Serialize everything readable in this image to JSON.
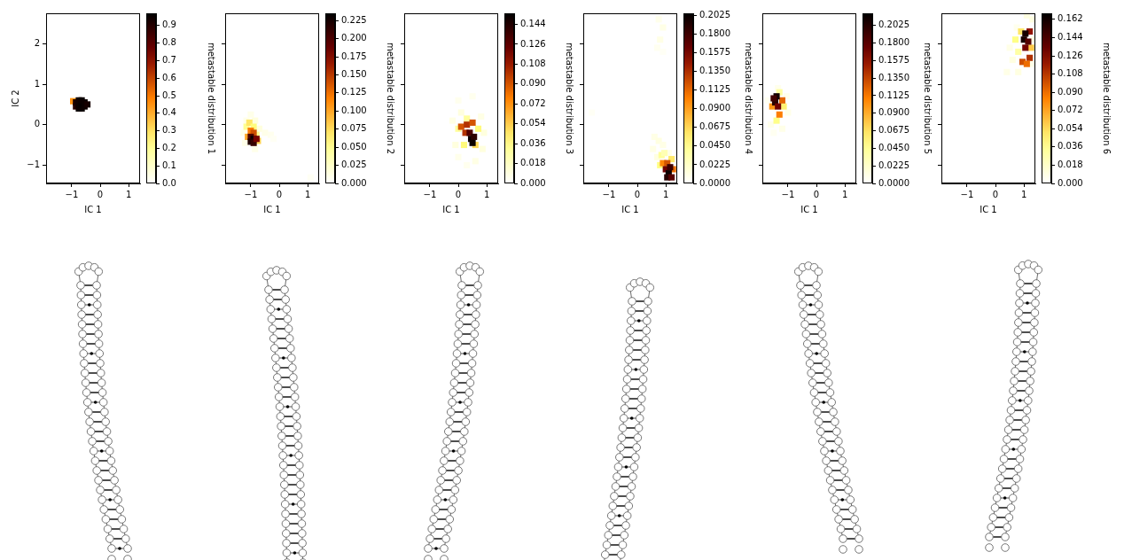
{
  "chart_data": [
    {
      "type": "heatmap",
      "xlabel": "IC 1",
      "ylabel": "IC 2",
      "tick_labels": true,
      "grid": false,
      "xlim": [
        -1.9,
        1.4
      ],
      "xticks": [
        {
          "value": -1,
          "label": "−1"
        },
        0,
        1
      ],
      "ylim": [
        -1.45,
        2.75
      ],
      "yticks": [
        {
          "value": -1,
          "label": "−1"
        },
        0,
        1,
        2
      ],
      "cells": [
        [
          -0.95,
          0.58,
          0.45
        ],
        [
          -0.85,
          0.45,
          0.9
        ],
        [
          -0.85,
          0.55,
          0.92
        ],
        [
          -0.75,
          0.4,
          0.95
        ],
        [
          -0.75,
          0.5,
          0.95
        ],
        [
          -0.75,
          0.6,
          0.94
        ],
        [
          -0.65,
          0.4,
          0.95
        ],
        [
          -0.65,
          0.5,
          0.96
        ],
        [
          -0.65,
          0.6,
          0.95
        ],
        [
          -0.55,
          0.45,
          0.95
        ],
        [
          -0.55,
          0.55,
          0.95
        ],
        [
          -0.45,
          0.5,
          0.93
        ]
      ],
      "colorbar": {
        "label": "metastable distribution 1",
        "range": [
          0,
          0.97
        ],
        "ticks": [
          {
            "value": 0,
            "label": "0.0"
          },
          0.1,
          0.2,
          0.3,
          0.4,
          0.5,
          0.6,
          0.7,
          0.8,
          0.9
        ]
      }
    },
    {
      "type": "heatmap",
      "xlabel": "IC 1",
      "tick_labels": "x",
      "grid": false,
      "xlim": [
        -1.9,
        1.4
      ],
      "xticks": [
        {
          "value": -1,
          "label": "−1"
        },
        0,
        1
      ],
      "ylim": [
        -1.45,
        2.75
      ],
      "yticks": [
        -1,
        0,
        1,
        2
      ],
      "cells": [
        [
          -1.25,
          -0.2,
          0.01
        ],
        [
          -1.15,
          0.1,
          0.01
        ],
        [
          -1.0,
          0.25,
          0.01
        ],
        [
          -0.85,
          0.1,
          0.015
        ],
        [
          -0.7,
          -0.1,
          0.015
        ],
        [
          -0.5,
          -0.2,
          0.01
        ],
        [
          -0.3,
          -0.25,
          0.008
        ],
        [
          -0.2,
          -0.35,
          0.005
        ],
        [
          -1.2,
          -0.45,
          0.01
        ],
        [
          -0.85,
          -0.6,
          0.01
        ],
        [
          1.1,
          -1.3,
          0.005
        ],
        [
          -1.15,
          -0.05,
          0.05
        ],
        [
          -1.05,
          0.05,
          0.07
        ],
        [
          -0.9,
          -0.05,
          0.06
        ],
        [
          -0.8,
          -0.25,
          0.05
        ],
        [
          -1.1,
          -0.3,
          0.1
        ],
        [
          -0.75,
          -0.4,
          0.08
        ],
        [
          -1.0,
          -0.15,
          0.12
        ],
        [
          -0.9,
          -0.2,
          0.14
        ],
        [
          -1.0,
          -0.3,
          0.2
        ],
        [
          -0.9,
          -0.35,
          0.23
        ],
        [
          -1.0,
          -0.42,
          0.22
        ],
        [
          -0.9,
          -0.45,
          0.21
        ],
        [
          -0.8,
          -0.35,
          0.18
        ]
      ],
      "colorbar": {
        "label": "metastable distribution 2",
        "range": [
          0,
          0.235
        ],
        "ticks": [
          {
            "value": 0,
            "label": "0.000"
          },
          0.025,
          {
            "value": 0.05,
            "label": "0.050"
          },
          0.075,
          {
            "value": 0.1,
            "label": "0.100"
          },
          0.125,
          {
            "value": 0.15,
            "label": "0.150"
          },
          0.175,
          {
            "value": 0.2,
            "label": "0.200"
          },
          0.225
        ]
      }
    },
    {
      "type": "heatmap",
      "xlabel": "IC 1",
      "tick_labels": "x",
      "grid": false,
      "xlim": [
        -1.9,
        1.4
      ],
      "xticks": [
        {
          "value": -1,
          "label": "−1"
        },
        0,
        1
      ],
      "ylim": [
        -1.45,
        2.75
      ],
      "yticks": [
        -1,
        0,
        1,
        2
      ],
      "cells": [
        [
          -0.2,
          0.1,
          0.008
        ],
        [
          0.0,
          0.6,
          0.005
        ],
        [
          0.1,
          0.3,
          0.01
        ],
        [
          0.5,
          0.7,
          0.005
        ],
        [
          0.8,
          0.2,
          0.008
        ],
        [
          0.9,
          -0.2,
          0.01
        ],
        [
          0.85,
          -0.6,
          0.01
        ],
        [
          0.6,
          -0.9,
          0.008
        ],
        [
          0.3,
          -1.0,
          0.005
        ],
        [
          -0.1,
          -0.5,
          0.01
        ],
        [
          0.0,
          -0.8,
          0.006
        ],
        [
          0.0,
          -0.1,
          0.03
        ],
        [
          0.2,
          -0.5,
          0.04
        ],
        [
          0.7,
          -0.1,
          0.04
        ],
        [
          0.6,
          -0.5,
          0.05
        ],
        [
          0.3,
          0.15,
          0.03
        ],
        [
          0.1,
          -0.05,
          0.09
        ],
        [
          0.3,
          0.0,
          0.1
        ],
        [
          0.5,
          0.05,
          0.09
        ],
        [
          0.25,
          -0.2,
          0.1
        ],
        [
          0.4,
          -0.2,
          0.13
        ],
        [
          0.45,
          -0.35,
          0.15
        ],
        [
          0.55,
          -0.3,
          0.14
        ],
        [
          0.5,
          -0.45,
          0.15
        ]
      ],
      "colorbar": {
        "label": "metastable distribution 3",
        "range": [
          0,
          0.154
        ],
        "ticks": [
          {
            "value": 0,
            "label": "0.000"
          },
          0.018,
          0.036,
          0.054,
          0.072,
          {
            "value": 0.09,
            "label": "0.090"
          },
          0.108,
          0.126,
          0.144
        ]
      }
    },
    {
      "type": "heatmap",
      "xlabel": "IC 1",
      "tick_labels": "x",
      "grid": false,
      "xlim": [
        -1.9,
        1.4
      ],
      "xticks": [
        {
          "value": -1,
          "label": "−1"
        },
        0,
        1
      ],
      "ylim": [
        -1.45,
        2.75
      ],
      "yticks": [
        -1,
        0,
        1,
        2
      ],
      "cells": [
        [
          -1.6,
          0.3,
          0.004
        ],
        [
          0.75,
          2.6,
          0.008
        ],
        [
          0.9,
          2.4,
          0.01
        ],
        [
          0.8,
          2.1,
          0.01
        ],
        [
          0.7,
          1.9,
          0.006
        ],
        [
          0.9,
          1.8,
          0.004
        ],
        [
          0.6,
          -0.3,
          0.01
        ],
        [
          0.75,
          -0.4,
          0.012
        ],
        [
          0.55,
          -0.6,
          0.01
        ],
        [
          0.9,
          -0.5,
          0.01
        ],
        [
          1.1,
          -0.7,
          0.01
        ],
        [
          0.7,
          -0.8,
          0.012
        ],
        [
          0.85,
          -0.75,
          0.04
        ],
        [
          0.95,
          -0.7,
          0.03
        ],
        [
          0.8,
          -1.0,
          0.05
        ],
        [
          1.2,
          -0.85,
          0.06
        ],
        [
          0.9,
          -0.95,
          0.1
        ],
        [
          1.05,
          -0.95,
          0.12
        ],
        [
          1.25,
          -1.1,
          0.11
        ],
        [
          1.0,
          -1.1,
          0.16
        ],
        [
          1.1,
          -1.2,
          0.2
        ],
        [
          1.05,
          -1.3,
          0.19
        ],
        [
          1.15,
          -1.05,
          0.18
        ],
        [
          1.2,
          -1.3,
          0.17
        ]
      ],
      "colorbar": {
        "label": "metastable distribution 4",
        "range": [
          0,
          0.205
        ],
        "ticks": [
          {
            "value": 0,
            "label": "0.0000"
          },
          0.0225,
          {
            "value": 0.045,
            "label": "0.0450"
          },
          0.0675,
          {
            "value": 0.09,
            "label": "0.0900"
          },
          0.1125,
          {
            "value": 0.135,
            "label": "0.1350"
          },
          0.1575,
          {
            "value": 0.18,
            "label": "0.1800"
          },
          0.2025
        ]
      }
    },
    {
      "type": "heatmap",
      "xlabel": "IC 1",
      "tick_labels": "x",
      "grid": false,
      "xlim": [
        -1.9,
        1.4
      ],
      "xticks": [
        {
          "value": -1,
          "label": "−1"
        },
        0,
        1
      ],
      "ylim": [
        -1.45,
        2.75
      ],
      "yticks": [
        -1,
        0,
        1,
        2
      ],
      "cells": [
        [
          -1.6,
          0.0,
          0.008
        ],
        [
          -1.2,
          -0.1,
          0.01
        ],
        [
          -1.0,
          0.3,
          0.01
        ],
        [
          -1.05,
          0.7,
          0.008
        ],
        [
          -1.35,
          0.9,
          0.008
        ],
        [
          -1.7,
          0.6,
          0.006
        ],
        [
          -1.5,
          -0.2,
          0.006
        ],
        [
          -1.4,
          0.1,
          0.05
        ],
        [
          -1.15,
          0.45,
          0.06
        ],
        [
          -1.3,
          0.8,
          0.04
        ],
        [
          -1.3,
          0.25,
          0.11
        ],
        [
          -1.2,
          0.6,
          0.12
        ],
        [
          -1.55,
          0.45,
          0.1
        ],
        [
          -1.45,
          0.55,
          0.2
        ],
        [
          -1.4,
          0.7,
          0.21
        ],
        [
          -1.35,
          0.45,
          0.17
        ],
        [
          -1.5,
          0.65,
          0.19
        ]
      ],
      "colorbar": {
        "label": "metastable distribution 5",
        "range": [
          0,
          0.218
        ],
        "ticks": [
          {
            "value": 0,
            "label": "0.0000"
          },
          0.0225,
          {
            "value": 0.045,
            "label": "0.0450"
          },
          0.0675,
          {
            "value": 0.09,
            "label": "0.0900"
          },
          0.1125,
          {
            "value": 0.135,
            "label": "0.1350"
          },
          0.1575,
          {
            "value": 0.18,
            "label": "0.1800"
          },
          0.2025
        ]
      }
    },
    {
      "type": "heatmap",
      "xlabel": "IC 1",
      "tick_labels": "x",
      "grid": false,
      "xlim": [
        -1.9,
        1.4
      ],
      "xticks": [
        {
          "value": -1,
          "label": "−1"
        },
        0,
        1
      ],
      "ylim": [
        -1.45,
        2.75
      ],
      "yticks": [
        -1,
        0,
        1,
        2
      ],
      "cells": [
        [
          0.4,
          1.3,
          0.008
        ],
        [
          0.6,
          1.6,
          0.01
        ],
        [
          0.5,
          1.9,
          0.008
        ],
        [
          0.8,
          1.3,
          0.01
        ],
        [
          1.3,
          1.5,
          0.008
        ],
        [
          1.35,
          2.1,
          0.01
        ],
        [
          1.3,
          2.6,
          0.01
        ],
        [
          0.75,
          2.4,
          0.006
        ],
        [
          1.1,
          2.7,
          0.01
        ],
        [
          0.8,
          1.8,
          0.03
        ],
        [
          0.9,
          2.3,
          0.05
        ],
        [
          1.25,
          1.9,
          0.06
        ],
        [
          0.7,
          2.1,
          0.04
        ],
        [
          0.95,
          1.55,
          0.1
        ],
        [
          1.2,
          1.65,
          0.11
        ],
        [
          1.1,
          1.5,
          0.09
        ],
        [
          1.2,
          2.3,
          0.12
        ],
        [
          1.05,
          1.9,
          0.13
        ],
        [
          1.0,
          2.1,
          0.16
        ],
        [
          1.05,
          2.25,
          0.16
        ],
        [
          1.15,
          2.05,
          0.14
        ]
      ],
      "colorbar": {
        "label": "metastable distribution 6",
        "range": [
          0,
          0.168
        ],
        "ticks": [
          {
            "value": 0,
            "label": "0.000"
          },
          0.018,
          0.036,
          0.054,
          0.072,
          {
            "value": 0.09,
            "label": "0.090"
          },
          0.108,
          0.126,
          0.144,
          0.162
        ]
      }
    }
  ]
}
